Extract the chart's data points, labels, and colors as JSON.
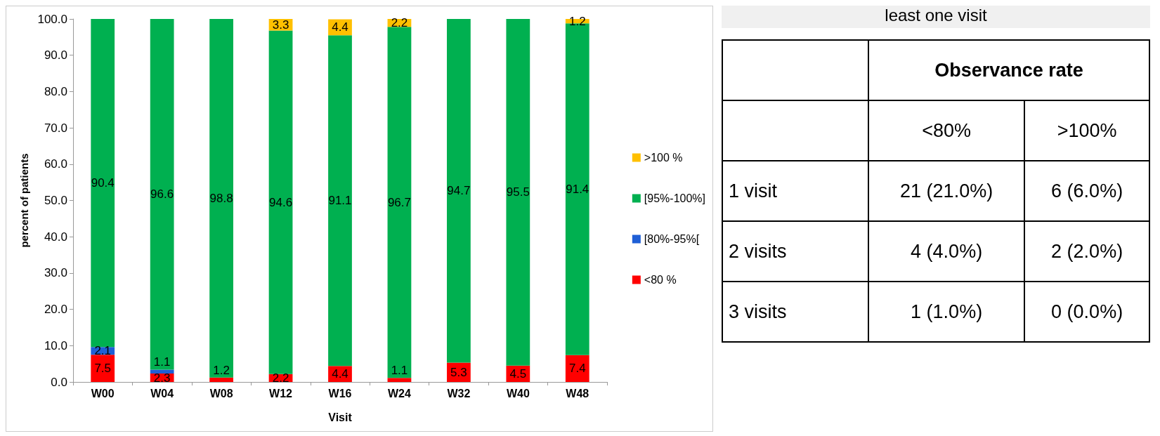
{
  "chart_data": [
    {
      "type": "bar",
      "stacked": true,
      "xlabel": "Visit",
      "ylabel": "percent of patients",
      "categories": [
        "W00",
        "W04",
        "W08",
        "W12",
        "W16",
        "W24",
        "W32",
        "W40",
        "W48"
      ],
      "series": [
        {
          "name": "<80 %",
          "color": "#ff0000",
          "values": [
            7.5,
            2.3,
            1.2,
            2.2,
            4.4,
            1.1,
            5.3,
            4.5,
            7.4
          ],
          "value_labels": [
            "7.5",
            "2.3",
            "1.2",
            "2.2",
            "4.4",
            "1.1",
            "5.3",
            "4.5",
            "7.4"
          ]
        },
        {
          "name": "[80%-95%[",
          "color": "#1f5fd6",
          "values": [
            2.1,
            1.1,
            null,
            null,
            null,
            null,
            null,
            null,
            null
          ],
          "value_labels": [
            "2.1",
            "1.1",
            null,
            null,
            null,
            null,
            null,
            null,
            null
          ]
        },
        {
          "name": "[95%-100%]",
          "color": "#00b050",
          "values": [
            90.4,
            96.6,
            98.8,
            94.6,
            91.1,
            96.7,
            94.7,
            95.5,
            91.4
          ],
          "value_labels": [
            "90.4",
            "96.6",
            "98.8",
            "94.6",
            "91.1",
            "96.7",
            "94.7",
            "95.5",
            "91.4"
          ]
        },
        {
          "name": ">100 %",
          "color": "#ffc000",
          "values": [
            null,
            null,
            null,
            3.3,
            4.4,
            2.2,
            null,
            null,
            1.2
          ],
          "value_labels": [
            null,
            null,
            null,
            "3.3",
            "4.4",
            "2.2",
            null,
            null,
            "1.2"
          ]
        }
      ],
      "ylim": [
        0,
        100
      ],
      "yticks": [
        {
          "value": 0,
          "label": "0.0"
        },
        {
          "value": 10,
          "label": "10.0"
        },
        {
          "value": 20,
          "label": "20.0"
        },
        {
          "value": 30,
          "label": "30.0"
        },
        {
          "value": 40,
          "label": "40.0"
        },
        {
          "value": 50,
          "label": "50.0"
        },
        {
          "value": 60,
          "label": "60.0"
        },
        {
          "value": 70,
          "label": "70.0"
        },
        {
          "value": 80,
          "label": "80.0"
        },
        {
          "value": 90,
          "label": "90.0"
        },
        {
          "value": 100,
          "label": "100.0"
        }
      ],
      "grid": false,
      "legend": "right"
    },
    {
      "type": "other",
      "title": "least one visit",
      "xlabel": "Observance rate",
      "categories": [
        "<80%",
        ">100%"
      ],
      "y_categories": [
        "1 visit",
        "2 visits",
        "3 visits"
      ],
      "cell_labels": [
        [
          "21 (21.0%)",
          "6 (6.0%)"
        ],
        [
          "4 (4.0%)",
          "2 (2.0%)"
        ],
        [
          "1 (1.0%)",
          "0 (0.0%)"
        ]
      ]
    }
  ]
}
